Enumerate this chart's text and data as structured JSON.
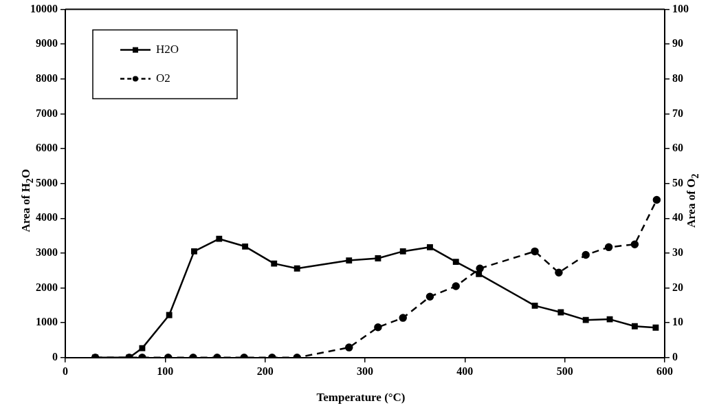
{
  "chart_data": {
    "type": "line",
    "xlabel": "Temperature (°C)",
    "ylabel": "Area of H$_{2}$O",
    "y2label": "Area of O$_{2}$",
    "xlim": [
      0,
      600
    ],
    "xticks": [
      0,
      100,
      200,
      300,
      400,
      500,
      600
    ],
    "ylim": [
      0,
      10000
    ],
    "yticks": [
      0,
      1000,
      2000,
      3000,
      4000,
      5000,
      6000,
      7000,
      8000,
      9000,
      10000
    ],
    "y2lim": [
      0,
      100
    ],
    "y2ticks": [
      0,
      10,
      20,
      30,
      40,
      50,
      60,
      70,
      80,
      90,
      100
    ],
    "legend": "top left",
    "grid": false,
    "series": [
      {
        "name": "H2O",
        "color": "#000000",
        "marker": "square",
        "line_style": "solid",
        "x": [
          30,
          64,
          77,
          104,
          129,
          154,
          180,
          209,
          232,
          284,
          313,
          338,
          365,
          391,
          414,
          470,
          496,
          521,
          545,
          570,
          591
        ],
        "values": [
          0,
          0,
          270,
          1220,
          3050,
          3410,
          3190,
          2700,
          2560,
          2790,
          2850,
          3050,
          3170,
          2750,
          2400,
          1490,
          1300,
          1080,
          1100,
          900,
          860
        ]
      },
      {
        "name": "O2",
        "color": "#000000",
        "marker": "circle",
        "line_style": "dashed",
        "axis": "y2",
        "x": [
          30,
          64,
          77,
          103,
          128,
          152,
          179,
          207,
          232,
          284,
          313,
          338,
          365,
          391,
          415,
          470,
          494,
          521,
          544,
          570,
          592
        ],
        "values": [
          0,
          0,
          0,
          0,
          0,
          0,
          0,
          0,
          0,
          2.9,
          8.7,
          11.4,
          17.5,
          20.5,
          25.6,
          30.5,
          24.4,
          29.5,
          31.7,
          32.5,
          45.3
        ]
      }
    ]
  }
}
